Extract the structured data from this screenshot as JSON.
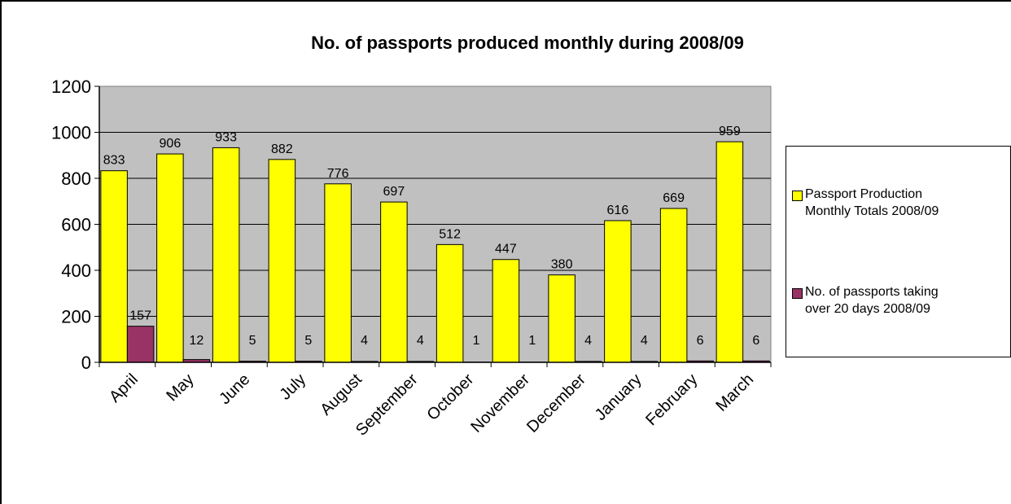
{
  "chart_data": {
    "type": "bar",
    "title": "No. of passports produced monthly during 2008/09",
    "categories": [
      "April",
      "May",
      "June",
      "July",
      "August",
      "September",
      "October",
      "November",
      "December",
      "January",
      "February",
      "March"
    ],
    "series": [
      {
        "name": "Passport Production\nMonthly Totals 2008/09",
        "color": "#ffff00",
        "values": [
          833,
          906,
          933,
          882,
          776,
          697,
          512,
          447,
          380,
          616,
          669,
          959
        ]
      },
      {
        "name": "No. of passports taking\nover 20 days 2008/09",
        "color": "#993366",
        "values": [
          157,
          12,
          5,
          5,
          4,
          4,
          1,
          1,
          4,
          4,
          6,
          6
        ]
      }
    ],
    "ylim": [
      0,
      1200
    ],
    "yticks": [
      "0",
      "200",
      "400",
      "600",
      "800",
      "1000",
      "1200"
    ],
    "grid": true,
    "plot_background": "#c0c0c0",
    "legend_position": "right"
  }
}
